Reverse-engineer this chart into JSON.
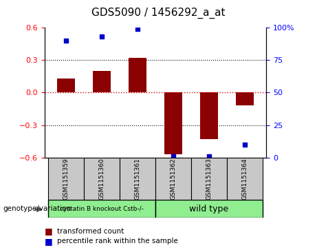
{
  "title": "GDS5090 / 1456292_a_at",
  "samples": [
    "GSM1151359",
    "GSM1151360",
    "GSM1151361",
    "GSM1151362",
    "GSM1151363",
    "GSM1151364"
  ],
  "bar_values": [
    0.13,
    0.2,
    0.32,
    -0.57,
    -0.43,
    -0.12
  ],
  "percentile_values": [
    90,
    93,
    99,
    1,
    1,
    10
  ],
  "ylim_left": [
    -0.6,
    0.6
  ],
  "ylim_right": [
    0,
    100
  ],
  "yticks_left": [
    -0.6,
    -0.3,
    0,
    0.3,
    0.6
  ],
  "yticks_right": [
    0,
    25,
    50,
    75,
    100
  ],
  "bar_color": "#8B0000",
  "dot_color": "#0000CC",
  "zero_line_color": "#CC0000",
  "grid_color": "#000000",
  "group1_label": "cystatin B knockout Cstb-/-",
  "group2_label": "wild type",
  "group1_indices": [
    0,
    1,
    2
  ],
  "group2_indices": [
    3,
    4,
    5
  ],
  "group1_color": "#90EE90",
  "group2_color": "#90EE90",
  "genotype_label": "genotype/variation",
  "legend_bar_label": "transformed count",
  "legend_dot_label": "percentile rank within the sample",
  "bar_width": 0.5,
  "background_color": "#ffffff",
  "sample_box_color": "#C8C8C8"
}
